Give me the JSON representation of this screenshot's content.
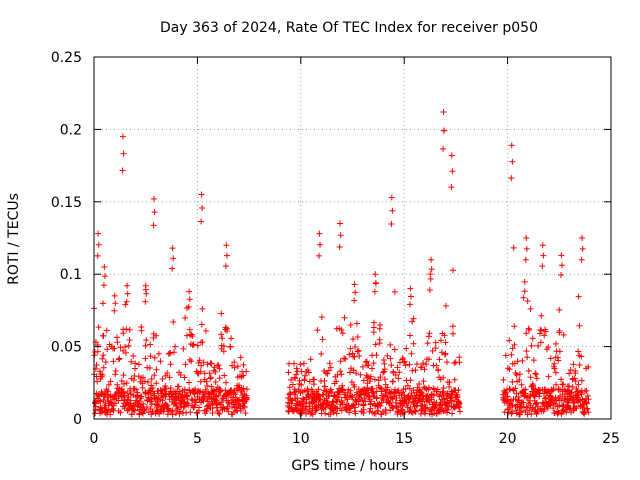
{
  "chart_data": {
    "type": "scatter",
    "title": "Day 363 of 2024, Rate Of TEC Index for receiver p050",
    "xlabel": "GPS time / hours",
    "ylabel": "ROTI / TECUs",
    "xlim": [
      0,
      25
    ],
    "ylim": [
      0,
      0.25
    ],
    "x_ticks": [
      0,
      5,
      10,
      15,
      20,
      25
    ],
    "x_tick_labels": [
      "0",
      "5",
      "10",
      "15",
      "20",
      "25"
    ],
    "y_ticks": [
      0,
      0.05,
      0.1,
      0.15,
      0.2,
      0.25
    ],
    "y_tick_labels": [
      "0",
      "0.05",
      "0.1",
      "0.15",
      "0.2",
      "0.25"
    ],
    "grid": true,
    "marker": "+",
    "series": [
      {
        "name": "ROTI",
        "color": "#ff0000",
        "segments": [
          {
            "start": 0.0,
            "end": 7.4
          },
          {
            "start": 9.4,
            "end": 17.7
          },
          {
            "start": 19.8,
            "end": 23.9
          }
        ],
        "bursts": [
          {
            "t": 0.2,
            "peak": 0.128,
            "width": 0.25
          },
          {
            "t": 0.5,
            "peak": 0.105,
            "width": 0.25
          },
          {
            "t": 1.0,
            "peak": 0.085,
            "width": 0.3
          },
          {
            "t": 1.4,
            "peak": 0.195,
            "width": 0.1
          },
          {
            "t": 1.6,
            "peak": 0.092,
            "width": 0.2
          },
          {
            "t": 2.5,
            "peak": 0.092,
            "width": 0.3
          },
          {
            "t": 2.9,
            "peak": 0.152,
            "width": 0.15
          },
          {
            "t": 3.8,
            "peak": 0.118,
            "width": 0.2
          },
          {
            "t": 4.6,
            "peak": 0.088,
            "width": 0.3
          },
          {
            "t": 5.2,
            "peak": 0.155,
            "width": 0.2
          },
          {
            "t": 6.4,
            "peak": 0.12,
            "width": 0.25
          },
          {
            "t": 9.8,
            "peak": 0.035,
            "width": 0.3
          },
          {
            "t": 10.9,
            "peak": 0.128,
            "width": 0.2
          },
          {
            "t": 11.9,
            "peak": 0.135,
            "width": 0.2
          },
          {
            "t": 12.6,
            "peak": 0.093,
            "width": 0.3
          },
          {
            "t": 13.6,
            "peak": 0.1,
            "width": 0.3
          },
          {
            "t": 14.4,
            "peak": 0.153,
            "width": 0.15
          },
          {
            "t": 15.3,
            "peak": 0.09,
            "width": 0.3
          },
          {
            "t": 16.3,
            "peak": 0.11,
            "width": 0.25
          },
          {
            "t": 16.9,
            "peak": 0.212,
            "width": 0.15
          },
          {
            "t": 17.3,
            "peak": 0.182,
            "width": 0.15
          },
          {
            "t": 20.2,
            "peak": 0.189,
            "width": 0.15
          },
          {
            "t": 20.9,
            "peak": 0.125,
            "width": 0.3
          },
          {
            "t": 21.7,
            "peak": 0.12,
            "width": 0.3
          },
          {
            "t": 22.6,
            "peak": 0.113,
            "width": 0.3
          },
          {
            "t": 23.6,
            "peak": 0.125,
            "width": 0.2
          }
        ]
      }
    ]
  }
}
